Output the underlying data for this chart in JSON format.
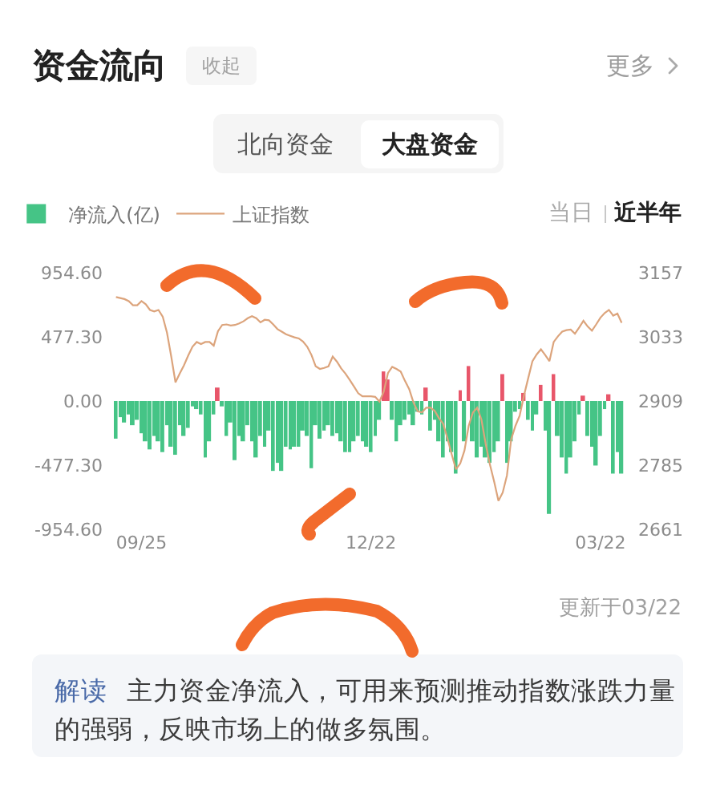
{
  "chart_data": {
    "type": "bar",
    "title": "资金流向",
    "categories": [
      null,
      null,
      null,
      null,
      null,
      null,
      "09/25",
      null,
      null,
      null,
      null,
      null,
      null,
      null,
      null,
      null,
      null,
      null,
      null,
      null,
      null,
      null,
      null,
      null,
      null,
      null,
      null,
      null,
      null,
      null,
      null,
      null,
      null,
      null,
      null,
      null,
      null,
      null,
      null,
      null,
      null,
      null,
      null,
      null,
      null,
      null,
      null,
      null,
      null,
      null,
      null,
      null,
      null,
      null,
      null,
      null,
      null,
      null,
      null,
      null,
      "12/22",
      null,
      null,
      null,
      null,
      null,
      null,
      null,
      null,
      null,
      null,
      null,
      null,
      null,
      null,
      null,
      null,
      null,
      null,
      null,
      null,
      null,
      null,
      null,
      null,
      null,
      null,
      null,
      null,
      null,
      null,
      null,
      null,
      null,
      null,
      null,
      null,
      null,
      null,
      null,
      null,
      null,
      null,
      null,
      null,
      null,
      null,
      null,
      null,
      null,
      null,
      null,
      null,
      null,
      "03/22",
      null,
      null,
      null,
      null,
      null
    ],
    "series": [
      {
        "name": "净流入(亿)",
        "colors": [
          "#45c486",
          "#45c486",
          "#45c486",
          "#45c486",
          "#45c486",
          "#45c486",
          "#45c486",
          "#45c486",
          "#45c486",
          "#45c486",
          "#45c486",
          "#45c486",
          "#45c486",
          "#45c486",
          "#45c486",
          "#45c486",
          "#45c486",
          "#45c486",
          "#45c486",
          "#45c486",
          "#45c486",
          "#45c486",
          "#45c486",
          "#45c486",
          "#e8566a",
          "#45c486",
          "#45c486",
          "#45c486",
          "#45c486",
          "#45c486",
          "#45c486",
          "#45c486",
          "#45c486",
          "#45c486",
          "#45c486",
          "#45c486",
          "#45c486",
          "#45c486",
          "#45c486",
          "#45c486",
          "#45c486",
          "#45c486",
          "#45c486",
          "#45c486",
          "#45c486",
          "#45c486",
          "#45c486",
          "#45c486",
          "#45c486",
          "#45c486",
          "#45c486",
          "#45c486",
          "#45c486",
          "#45c486",
          "#45c486",
          "#45c486",
          "#45c486",
          "#45c486",
          "#45c486",
          "#45c486",
          "#45c486",
          "#45c486",
          "#45c486",
          "#e8566a",
          "#e8566a",
          "#45c486",
          "#45c486",
          "#45c486",
          "#45c486",
          "#45c486",
          "#45c486",
          "#45c486",
          "#45c486",
          "#e8566a",
          "#45c486",
          "#45c486",
          "#45c486",
          "#45c486",
          "#45c486",
          "#45c486",
          "#45c486",
          "#e8566a",
          "#45c486",
          "#e8566a",
          "#45c486",
          "#45c486",
          "#45c486",
          "#45c486",
          "#45c486",
          "#45c486",
          "#45c486",
          "#e8566a",
          "#45c486",
          "#45c486",
          "#45c486",
          "#45c486",
          "#e8566a",
          "#45c486",
          "#45c486",
          "#45c486",
          "#e8566a",
          "#45c486",
          "#45c486",
          "#e8566a",
          "#45c486",
          "#45c486",
          "#45c486",
          "#45c486",
          "#45c486",
          "#45c486",
          "#e8566a",
          "#45c486",
          "#45c486",
          "#45c486",
          "#45c486",
          "#45c486",
          "#e8566a",
          "#45c486",
          "#45c486",
          "#45c486"
        ],
        "values": [
          -280,
          -120,
          -160,
          -100,
          -180,
          -140,
          -240,
          -300,
          -360,
          -260,
          -300,
          -380,
          -180,
          -340,
          -400,
          -180,
          -260,
          -200,
          -40,
          -60,
          -100,
          -420,
          -300,
          -100,
          100,
          -40,
          -260,
          -160,
          -440,
          -260,
          -300,
          -180,
          -300,
          -420,
          -260,
          -340,
          -220,
          -520,
          -460,
          -520,
          -340,
          -360,
          -340,
          -340,
          -220,
          -260,
          -500,
          -180,
          -280,
          -220,
          -180,
          -260,
          -240,
          -300,
          -380,
          -380,
          -300,
          -260,
          -300,
          -340,
          -380,
          -260,
          -140,
          220,
          160,
          -140,
          -300,
          -180,
          -140,
          -100,
          -180,
          -80,
          -100,
          100,
          -220,
          -140,
          -300,
          -420,
          -300,
          -380,
          -540,
          80,
          -300,
          260,
          -300,
          -420,
          -340,
          -420,
          -460,
          -380,
          -300,
          200,
          -460,
          -300,
          -80,
          -60,
          60,
          -140,
          -220,
          -100,
          120,
          -220,
          -840,
          200,
          -260,
          -420,
          -540,
          -420,
          -300,
          -100,
          40,
          -260,
          -340,
          -480,
          -260,
          -60,
          50,
          -540,
          -380,
          -540
        ]
      },
      {
        "name": "上证指数",
        "type": "line",
        "axis": "y2",
        "color": "#dca47c",
        "values": [
          3110,
          3108,
          3106,
          3102,
          3094,
          3094,
          3102,
          3096,
          3085,
          3082,
          3085,
          3072,
          3041,
          2995,
          2945,
          2962,
          2978,
          2997,
          3014,
          3023,
          3019,
          3023,
          3023,
          3016,
          3044,
          3056,
          3057,
          3055,
          3056,
          3059,
          3063,
          3069,
          3073,
          3069,
          3061,
          3066,
          3065,
          3057,
          3048,
          3043,
          3038,
          3035,
          3032,
          3030,
          3024,
          3014,
          2998,
          2976,
          2971,
          2973,
          2976,
          2995,
          2985,
          2972,
          2962,
          2950,
          2937,
          2924,
          2918,
          2918,
          2918,
          2917,
          2908,
          2927,
          2963,
          2975,
          2971,
          2966,
          2948,
          2932,
          2906,
          2889,
          2887,
          2896,
          2896,
          2890,
          2876,
          2865,
          2837,
          2806,
          2777,
          2788,
          2813,
          2861,
          2887,
          2896,
          2873,
          2826,
          2786,
          2753,
          2716,
          2732,
          2765,
          2835,
          2861,
          2881,
          2919,
          2953,
          2986,
          2999,
          3009,
          2998,
          2986,
          3023,
          3034,
          3043,
          3046,
          3047,
          3039,
          3051,
          3064,
          3053,
          3045,
          3057,
          3070,
          3079,
          3085,
          3074,
          3078,
          3060
        ]
      }
    ],
    "ylim": [
      -954.6,
      954.6
    ],
    "yticks": [
      {
        "value": 954.6,
        "label": "954.60"
      },
      {
        "value": 477.3,
        "label": "477.30"
      },
      {
        "value": 0,
        "label": "0.00"
      },
      {
        "value": -477.3,
        "label": "-477.30"
      },
      {
        "value": -954.6,
        "label": "-954.60"
      }
    ],
    "y2lim": [
      2661,
      3157
    ],
    "y2ticks": [
      3157,
      3033,
      2909,
      2785,
      2661
    ],
    "legend": "top left",
    "annotations": [
      "收起",
      "更多",
      "北向资金",
      "大盘资金",
      "当日",
      "近半年",
      "更新于03/22",
      "解读 主力资金净流入，可用来预测推动指数涨跌力量的强弱，反映市场上的做多氛围。"
    ]
  }
}
